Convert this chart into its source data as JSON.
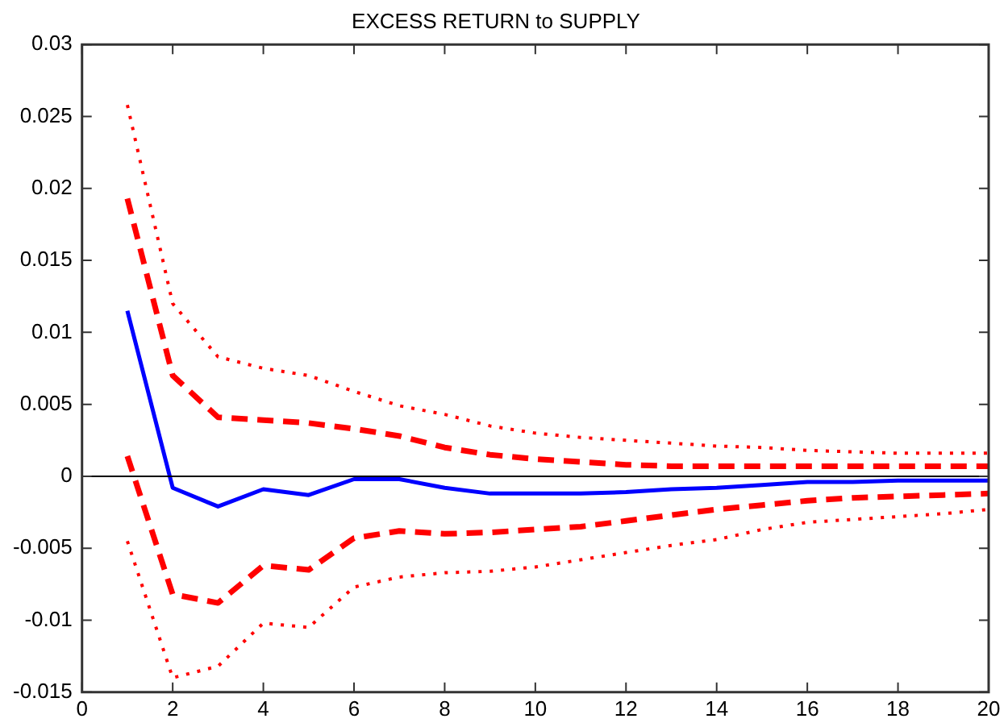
{
  "chart_data": {
    "type": "line",
    "title": "EXCESS RETURN to SUPPLY",
    "x": [
      1,
      2,
      3,
      4,
      5,
      6,
      7,
      8,
      9,
      10,
      11,
      12,
      13,
      14,
      15,
      16,
      17,
      18,
      19,
      20
    ],
    "xlim": [
      0,
      20
    ],
    "xticks": [
      0,
      2,
      4,
      6,
      8,
      10,
      12,
      14,
      16,
      18,
      20
    ],
    "ylim": [
      -0.015,
      0.03
    ],
    "yticks": [
      -0.015,
      -0.01,
      -0.005,
      0,
      0.005,
      0.01,
      0.015,
      0.02,
      0.025,
      0.03
    ],
    "grid": false,
    "legend": false,
    "marker": "none",
    "ref_lines": [
      {
        "axis": "y",
        "value": 0,
        "color": "#000000",
        "line_style": "solid"
      }
    ],
    "series": [
      {
        "color": "#0000ff",
        "line_style": "solid",
        "values": [
          0.0115,
          -0.0008,
          -0.0021,
          -0.0009,
          -0.0013,
          -0.0002,
          -0.0002,
          -0.0008,
          -0.0012,
          -0.0012,
          -0.0012,
          -0.0011,
          -0.0009,
          -0.0008,
          -0.0006,
          -0.0004,
          -0.0004,
          -0.0003,
          -0.0003,
          -0.0003
        ]
      },
      {
        "color": "#ff0000",
        "line_style": "dashed",
        "values": [
          0.0193,
          0.007,
          0.0041,
          0.0039,
          0.0037,
          0.0033,
          0.0028,
          0.002,
          0.0015,
          0.0012,
          0.001,
          0.0008,
          0.0007,
          0.0007,
          0.0007,
          0.0007,
          0.0007,
          0.0007,
          0.0007,
          0.0007
        ]
      },
      {
        "color": "#ff0000",
        "line_style": "dashed",
        "values": [
          0.0014,
          -0.0082,
          -0.0088,
          -0.0062,
          -0.0065,
          -0.0043,
          -0.0038,
          -0.004,
          -0.0039,
          -0.0037,
          -0.0035,
          -0.0031,
          -0.0027,
          -0.0023,
          -0.002,
          -0.0017,
          -0.0015,
          -0.0014,
          -0.0013,
          -0.0012
        ]
      },
      {
        "color": "#ff0000",
        "line_style": "dotted",
        "values": [
          0.0258,
          0.012,
          0.0083,
          0.0075,
          0.007,
          0.0059,
          0.0049,
          0.0043,
          0.0035,
          0.003,
          0.0027,
          0.0025,
          0.0023,
          0.0021,
          0.002,
          0.0018,
          0.0017,
          0.0016,
          0.0016,
          0.0016
        ]
      },
      {
        "color": "#ff0000",
        "line_style": "dotted",
        "values": [
          -0.0045,
          -0.014,
          -0.0132,
          -0.0102,
          -0.0105,
          -0.0077,
          -0.007,
          -0.0067,
          -0.0066,
          -0.0063,
          -0.0058,
          -0.0053,
          -0.0048,
          -0.0044,
          -0.0037,
          -0.0032,
          -0.003,
          -0.0028,
          -0.0026,
          -0.0023
        ]
      }
    ]
  }
}
